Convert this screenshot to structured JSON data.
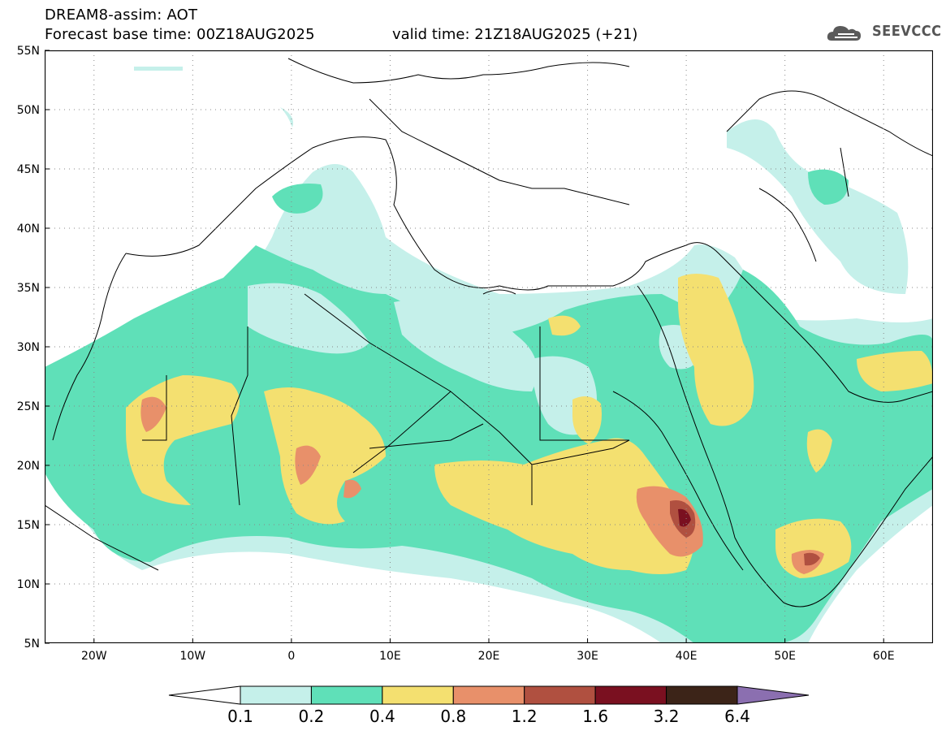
{
  "header": {
    "title": "DREAM8-assim: AOT",
    "base_time_line": "Forecast base time: 00Z18AUG2025",
    "valid_time_line": "valid time: 21Z18AUG2025 (+21)",
    "brand": "SEEVCCC"
  },
  "map": {
    "lat_labels": [
      "55N",
      "50N",
      "45N",
      "40N",
      "35N",
      "30N",
      "25N",
      "20N",
      "15N",
      "10N",
      "5N"
    ],
    "lon_labels": [
      "20W",
      "10W",
      "0",
      "10E",
      "20E",
      "30E",
      "40E",
      "50E",
      "60E"
    ],
    "lat_values": [
      55,
      50,
      45,
      40,
      35,
      30,
      25,
      20,
      15,
      10,
      5
    ],
    "lon_values": [
      -20,
      -10,
      0,
      10,
      20,
      30,
      40,
      50,
      60
    ],
    "extent": {
      "lon_min": -25,
      "lon_max": 65,
      "lat_min": 5,
      "lat_max": 55
    },
    "colors": {
      "aot_0_1": "#c5f0ea",
      "aot_0_2": "#5fe0b8",
      "aot_0_4": "#f4e070",
      "aot_0_8": "#e8906a",
      "aot_1_2": "#b05040",
      "aot_1_6": "#7a1020",
      "aot_3_2": "#3c2418",
      "aot_6_4": "#8b6fb0"
    }
  },
  "colorbar": {
    "labels": [
      "0.1",
      "0.2",
      "0.4",
      "0.8",
      "1.2",
      "1.6",
      "3.2",
      "6.4"
    ],
    "colors": [
      "#ffffff",
      "#c5f0ea",
      "#5fe0b8",
      "#f4e070",
      "#e8906a",
      "#b05040",
      "#7a1020",
      "#3c2418",
      "#8b6fb0"
    ]
  }
}
